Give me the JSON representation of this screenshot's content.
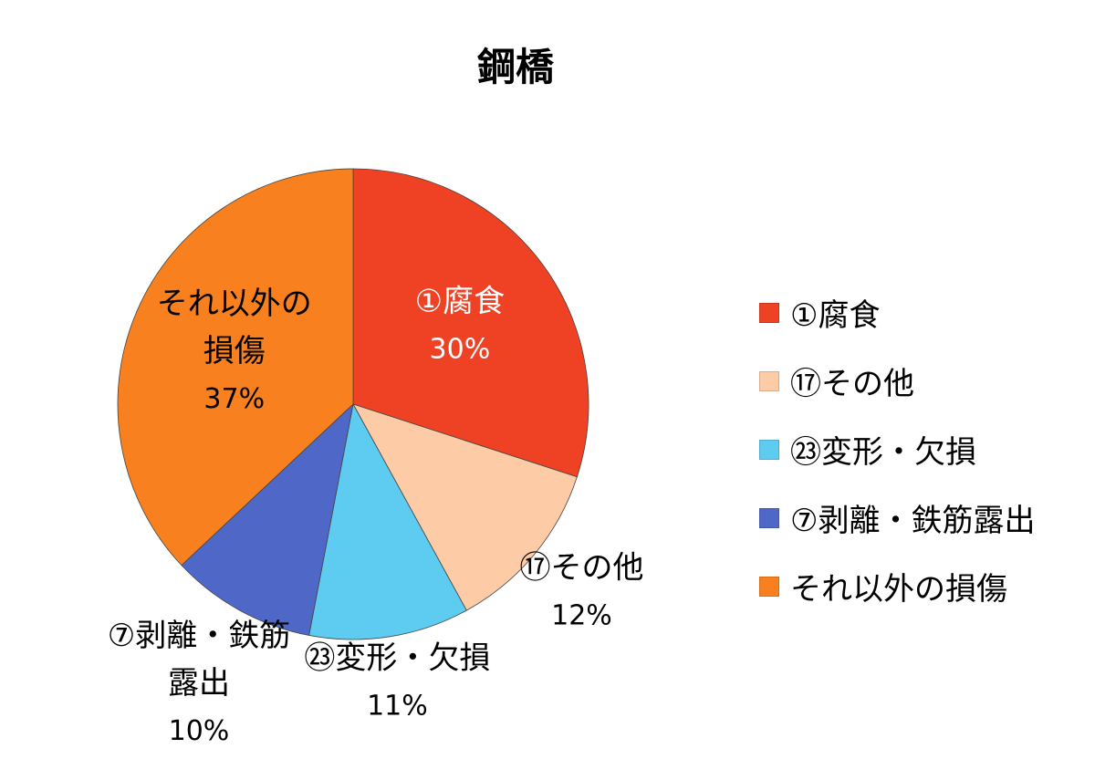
{
  "chart_data": {
    "type": "pie",
    "title": "鋼橋",
    "categories": [
      "①腐食",
      "⑰その他",
      "㉓変形・欠損",
      "⑦剥離・鉄筋露出",
      "それ以外の損傷"
    ],
    "values": [
      30,
      12,
      11,
      10,
      37
    ],
    "data_labels": [
      {
        "lines": [
          "①腐食"
        ],
        "percent": "30%",
        "color": "#ffffff"
      },
      {
        "lines": [
          "⑰その他"
        ],
        "percent": "12%",
        "color": "#000000"
      },
      {
        "lines": [
          "㉓変形・欠損"
        ],
        "percent": "11%",
        "color": "#000000"
      },
      {
        "lines": [
          "⑦剥離・鉄筋",
          "露出"
        ],
        "percent": "10%",
        "color": "#000000"
      },
      {
        "lines": [
          "それ以外の",
          "損傷"
        ],
        "percent": "37%",
        "color": "#000000"
      }
    ],
    "colors": [
      "#ef4123",
      "#fdcba6",
      "#5ecbf1",
      "#4f68c7",
      "#f8801e"
    ],
    "legend_position": "right",
    "start_angle_deg": 0,
    "direction": "clockwise"
  }
}
